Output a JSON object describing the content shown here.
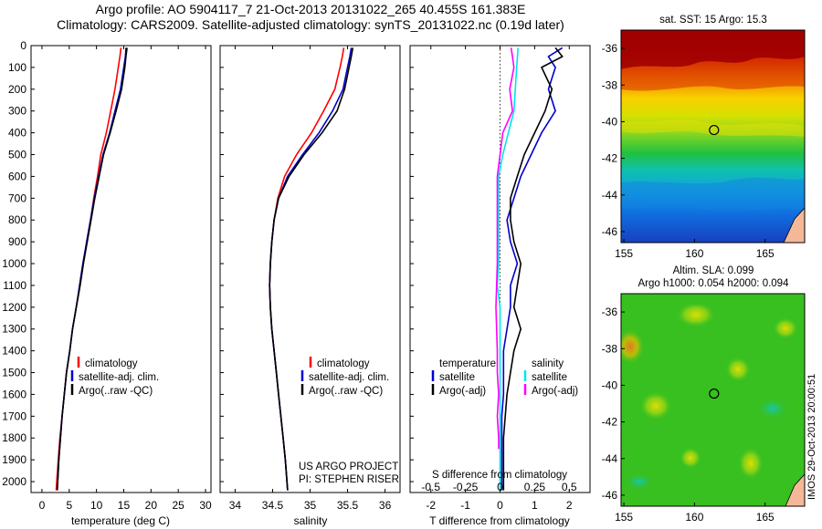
{
  "header": {
    "title_line1": "Argo profile: AO 5904117_7 21-Oct-2013 20131022_265 40.455S 161.383E",
    "title_line2": "Climatology: CARS2009. Satellite-adjusted climatology: synTS_20131022.nc (0.19d later)"
  },
  "colors": {
    "climatology": "#ff0000",
    "satellite": "#0000cc",
    "argo": "#000000",
    "satellite_s": "#00e5ee",
    "argo_s": "#ff00ff"
  },
  "notes": {
    "project": "US ARGO PROJECT",
    "pi": "PI: STEPHEN RISER",
    "stamp": "IMOS 29-Oct-2013 20:00:51"
  },
  "chart_data": [
    {
      "type": "line",
      "panel": "temperature",
      "xlabel": "temperature (deg C)",
      "xlim": [
        -2,
        31
      ],
      "xticks": [
        0,
        5,
        10,
        15,
        20,
        25,
        30
      ],
      "ylim": [
        0,
        2050
      ],
      "yticks": [
        0,
        100,
        200,
        300,
        400,
        500,
        600,
        700,
        800,
        900,
        1000,
        1100,
        1200,
        1300,
        1400,
        1500,
        1600,
        1700,
        1800,
        1900,
        2000
      ],
      "y_reversed": true,
      "legend": {
        "placement": "center-left",
        "entries": [
          "climatology",
          "satellite-adj. clim.",
          "Argo(..raw -QC)"
        ]
      },
      "series": [
        {
          "name": "climatology",
          "color": "#ff0000",
          "points": [
            [
              14.5,
              10
            ],
            [
              14.3,
              50
            ],
            [
              14.0,
              100
            ],
            [
              13.4,
              200
            ],
            [
              12.6,
              300
            ],
            [
              11.8,
              400
            ],
            [
              10.8,
              500
            ],
            [
              10.2,
              600
            ],
            [
              9.5,
              700
            ],
            [
              8.9,
              800
            ],
            [
              8.2,
              900
            ],
            [
              7.6,
              1000
            ],
            [
              7.0,
              1100
            ],
            [
              6.3,
              1200
            ],
            [
              5.6,
              1300
            ],
            [
              5.1,
              1400
            ],
            [
              4.5,
              1500
            ],
            [
              4.1,
              1600
            ],
            [
              3.7,
              1700
            ],
            [
              3.3,
              1800
            ],
            [
              3.0,
              1900
            ],
            [
              2.6,
              2040
            ]
          ]
        },
        {
          "name": "satellite-adj. clim.",
          "color": "#0000cc",
          "points": [
            [
              15.4,
              10
            ],
            [
              15.3,
              50
            ],
            [
              15.0,
              100
            ],
            [
              14.4,
              200
            ],
            [
              13.4,
              300
            ],
            [
              12.4,
              400
            ],
            [
              11.2,
              500
            ],
            [
              10.4,
              600
            ],
            [
              9.6,
              700
            ],
            [
              8.9,
              800
            ],
            [
              8.2,
              900
            ],
            [
              7.5,
              1000
            ],
            [
              6.9,
              1100
            ],
            [
              6.3,
              1200
            ],
            [
              5.6,
              1300
            ],
            [
              5.1,
              1400
            ],
            [
              4.5,
              1500
            ],
            [
              4.1,
              1600
            ],
            [
              3.7,
              1700
            ],
            [
              3.4,
              1800
            ],
            [
              3.1,
              1900
            ],
            [
              2.8,
              2040
            ]
          ]
        },
        {
          "name": "Argo(..raw -QC)",
          "color": "#000000",
          "points": [
            [
              15.6,
              10
            ],
            [
              15.4,
              50
            ],
            [
              15.2,
              100
            ],
            [
              14.6,
              200
            ],
            [
              13.6,
              300
            ],
            [
              12.5,
              400
            ],
            [
              11.3,
              500
            ],
            [
              10.5,
              600
            ],
            [
              9.7,
              700
            ],
            [
              9.0,
              800
            ],
            [
              8.3,
              900
            ],
            [
              7.6,
              1000
            ],
            [
              7.0,
              1100
            ],
            [
              6.3,
              1200
            ],
            [
              5.6,
              1300
            ],
            [
              5.1,
              1400
            ],
            [
              4.5,
              1500
            ],
            [
              4.1,
              1600
            ],
            [
              3.7,
              1700
            ],
            [
              3.4,
              1800
            ],
            [
              3.1,
              1900
            ],
            [
              2.8,
              2040
            ]
          ]
        }
      ]
    },
    {
      "type": "line",
      "panel": "salinity",
      "xlabel": "salinity",
      "xlim": [
        33.8,
        36.2
      ],
      "xticks": [
        34,
        34.5,
        35,
        35.5,
        36
      ],
      "ylim": [
        0,
        2050
      ],
      "y_reversed": true,
      "legend": {
        "placement": "center-right",
        "entries": [
          "climatology",
          "satellite-adj. clim.",
          "Argo(..raw -QC)"
        ]
      },
      "series": [
        {
          "name": "climatology",
          "color": "#ff0000",
          "points": [
            [
              35.45,
              10
            ],
            [
              35.43,
              50
            ],
            [
              35.4,
              100
            ],
            [
              35.33,
              200
            ],
            [
              35.18,
              300
            ],
            [
              35.02,
              400
            ],
            [
              34.82,
              500
            ],
            [
              34.66,
              600
            ],
            [
              34.57,
              700
            ],
            [
              34.52,
              800
            ],
            [
              34.49,
              900
            ],
            [
              34.47,
              1000
            ],
            [
              34.46,
              1100
            ],
            [
              34.47,
              1200
            ],
            [
              34.49,
              1300
            ],
            [
              34.52,
              1400
            ],
            [
              34.55,
              1500
            ],
            [
              34.58,
              1600
            ],
            [
              34.61,
              1700
            ],
            [
              34.64,
              1800
            ],
            [
              34.67,
              1900
            ],
            [
              34.7,
              2040
            ]
          ]
        },
        {
          "name": "satellite-adj. clim.",
          "color": "#0000cc",
          "points": [
            [
              35.55,
              10
            ],
            [
              35.53,
              50
            ],
            [
              35.5,
              100
            ],
            [
              35.44,
              200
            ],
            [
              35.3,
              300
            ],
            [
              35.12,
              400
            ],
            [
              34.9,
              500
            ],
            [
              34.7,
              600
            ],
            [
              34.58,
              700
            ],
            [
              34.52,
              800
            ],
            [
              34.49,
              900
            ],
            [
              34.47,
              1000
            ],
            [
              34.46,
              1100
            ],
            [
              34.47,
              1200
            ],
            [
              34.49,
              1300
            ],
            [
              34.52,
              1400
            ],
            [
              34.55,
              1500
            ],
            [
              34.58,
              1600
            ],
            [
              34.61,
              1700
            ],
            [
              34.64,
              1800
            ],
            [
              34.67,
              1900
            ],
            [
              34.7,
              2040
            ]
          ]
        },
        {
          "name": "Argo(..raw -QC)",
          "color": "#000000",
          "points": [
            [
              35.57,
              10
            ],
            [
              35.55,
              50
            ],
            [
              35.52,
              100
            ],
            [
              35.46,
              200
            ],
            [
              35.36,
              300
            ],
            [
              35.16,
              400
            ],
            [
              34.92,
              500
            ],
            [
              34.72,
              600
            ],
            [
              34.58,
              700
            ],
            [
              34.52,
              800
            ],
            [
              34.49,
              900
            ],
            [
              34.47,
              1000
            ],
            [
              34.46,
              1100
            ],
            [
              34.47,
              1200
            ],
            [
              34.49,
              1300
            ],
            [
              34.52,
              1400
            ],
            [
              34.55,
              1500
            ],
            [
              34.58,
              1600
            ],
            [
              34.61,
              1700
            ],
            [
              34.64,
              1800
            ],
            [
              34.67,
              1900
            ],
            [
              34.7,
              2040
            ]
          ]
        }
      ]
    },
    {
      "type": "line",
      "panel": "difference",
      "xlabel": "T difference from climatology",
      "xlabel_top": "S difference from climatology",
      "xlim": [
        -2.6,
        2.6
      ],
      "xticks": [
        -2,
        -1,
        0,
        1,
        2
      ],
      "xticks_top": [
        "-0.5",
        "-0.25",
        "0",
        "0.25",
        "0.5"
      ],
      "ylim": [
        0,
        2050
      ],
      "y_reversed": true,
      "legend": {
        "placement": "bottom",
        "columns": [
          {
            "title": "temperature",
            "entries": [
              "satellite",
              "Argo(-adj)"
            ]
          },
          {
            "title": "salinity",
            "entries": [
              "satellite",
              "Argo(-adj)"
            ]
          }
        ]
      },
      "series": [
        {
          "name": "temperature satellite",
          "color": "#0000cc",
          "points": [
            [
              1.8,
              10
            ],
            [
              1.4,
              50
            ],
            [
              1.6,
              100
            ],
            [
              1.4,
              200
            ],
            [
              1.6,
              300
            ],
            [
              1.2,
              400
            ],
            [
              0.9,
              500
            ],
            [
              0.6,
              600
            ],
            [
              0.4,
              700
            ],
            [
              0.2,
              800
            ],
            [
              0.3,
              900
            ],
            [
              0.5,
              1000
            ],
            [
              0.3,
              1100
            ],
            [
              0.3,
              1200
            ],
            [
              0.2,
              1300
            ],
            [
              0.1,
              1400
            ],
            [
              0.1,
              1500
            ],
            [
              0.1,
              1600
            ],
            [
              0.05,
              1700
            ],
            [
              0.05,
              1800
            ],
            [
              0.05,
              1900
            ],
            [
              0.05,
              2040
            ]
          ]
        },
        {
          "name": "temperature Argo(-adj)",
          "color": "#000000",
          "points": [
            [
              1.6,
              10
            ],
            [
              1.8,
              50
            ],
            [
              1.2,
              100
            ],
            [
              1.5,
              200
            ],
            [
              1.3,
              300
            ],
            [
              1.0,
              400
            ],
            [
              0.7,
              500
            ],
            [
              0.5,
              600
            ],
            [
              0.3,
              700
            ],
            [
              0.3,
              800
            ],
            [
              0.4,
              900
            ],
            [
              0.6,
              1000
            ],
            [
              0.5,
              1100
            ],
            [
              0.4,
              1200
            ],
            [
              0.6,
              1300
            ],
            [
              0.4,
              1400
            ],
            [
              0.3,
              1500
            ],
            [
              0.2,
              1600
            ],
            [
              0.15,
              1700
            ],
            [
              0.1,
              1800
            ],
            [
              0.1,
              1900
            ],
            [
              0.1,
              2040
            ]
          ]
        },
        {
          "name": "salinity satellite",
          "color": "#00e5ee",
          "points": [
            [
              0.13,
              10
            ],
            [
              0.12,
              100
            ],
            [
              0.11,
              200
            ],
            [
              0.1,
              300
            ],
            [
              0.06,
              400
            ],
            [
              0.02,
              500
            ],
            [
              -0.01,
              600
            ],
            [
              -0.01,
              700
            ],
            [
              -0.01,
              800
            ],
            [
              -0.01,
              900
            ],
            [
              -0.01,
              1000
            ],
            [
              -0.02,
              1100
            ],
            [
              0,
              1200
            ],
            [
              0,
              1400
            ],
            [
              0,
              1500
            ],
            [
              0,
              1700
            ],
            [
              0,
              2040
            ]
          ]
        },
        {
          "name": "salinity Argo(-adj)",
          "color": "#ff00ff",
          "points": [
            [
              0.08,
              10
            ],
            [
              0.09,
              50
            ],
            [
              0.1,
              100
            ],
            [
              0.07,
              200
            ],
            [
              0.09,
              300
            ],
            [
              0.02,
              400
            ],
            [
              0,
              500
            ],
            [
              -0.02,
              600
            ],
            [
              -0.02,
              700
            ],
            [
              -0.02,
              800
            ],
            [
              -0.02,
              1000
            ],
            [
              -0.03,
              1200
            ],
            [
              -0.02,
              1400
            ],
            [
              -0.02,
              1500
            ],
            [
              -0.01,
              1600
            ],
            [
              -0.02,
              1700
            ],
            [
              -0.01,
              1800
            ],
            [
              -0.01,
              1850
            ]
          ]
        }
      ]
    },
    {
      "type": "heatmap",
      "panel": "sst_map",
      "title": "sat. SST: 15 Argo: 15.3",
      "xlim": [
        154.8,
        167.8
      ],
      "ylim": [
        -46.6,
        -35.0
      ],
      "xticks": [
        155,
        160,
        165
      ],
      "yticks": [
        -36,
        -38,
        -40,
        -42,
        -44,
        -46
      ],
      "marker": {
        "lon": 161.383,
        "lat": -40.455
      }
    },
    {
      "type": "heatmap",
      "panel": "sla_map",
      "title_line1": "Altim. SLA: 0.099",
      "title_line2": "Argo h1000: 0.054 h2000: 0.094",
      "xlim": [
        154.8,
        167.8
      ],
      "ylim": [
        -46.6,
        -35.0
      ],
      "xticks": [
        155,
        160,
        165
      ],
      "yticks": [
        -36,
        -38,
        -40,
        -42,
        -44,
        -46
      ],
      "marker": {
        "lon": 161.383,
        "lat": -40.455
      }
    }
  ]
}
